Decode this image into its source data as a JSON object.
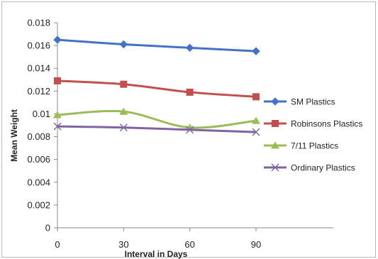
{
  "chart_data": {
    "type": "line",
    "x": [
      0,
      30,
      60,
      90
    ],
    "xlabel": "Interval in Days",
    "ylabel": "Mean Weight",
    "ylim": [
      0,
      0.018
    ],
    "yticks": [
      "0",
      "0.002",
      "0.004",
      "0.006",
      "0.008",
      "0.01",
      "0.012",
      "0.014",
      "0.016",
      "0.018"
    ],
    "xticks": [
      "0",
      "30",
      "60",
      "90"
    ],
    "grid": false,
    "legend": "right",
    "smooth": true,
    "series": [
      {
        "name": "SM Plastics",
        "values": [
          0.0165,
          0.0161,
          0.0158,
          0.0155
        ],
        "color": "#4472C4",
        "marker": "diamond"
      },
      {
        "name": "Robinsons Plastics",
        "values": [
          0.0129,
          0.0126,
          0.0119,
          0.0115
        ],
        "color": "#C0504D",
        "marker": "square"
      },
      {
        "name": "7/11 Plastics",
        "values": [
          0.0099,
          0.0102,
          0.0088,
          0.0094
        ],
        "color": "#9BBB59",
        "marker": "triangle"
      },
      {
        "name": "Ordinary Plastics",
        "values": [
          0.0089,
          0.0088,
          0.0086,
          0.0084
        ],
        "color": "#8064A2",
        "marker": "x"
      }
    ]
  }
}
